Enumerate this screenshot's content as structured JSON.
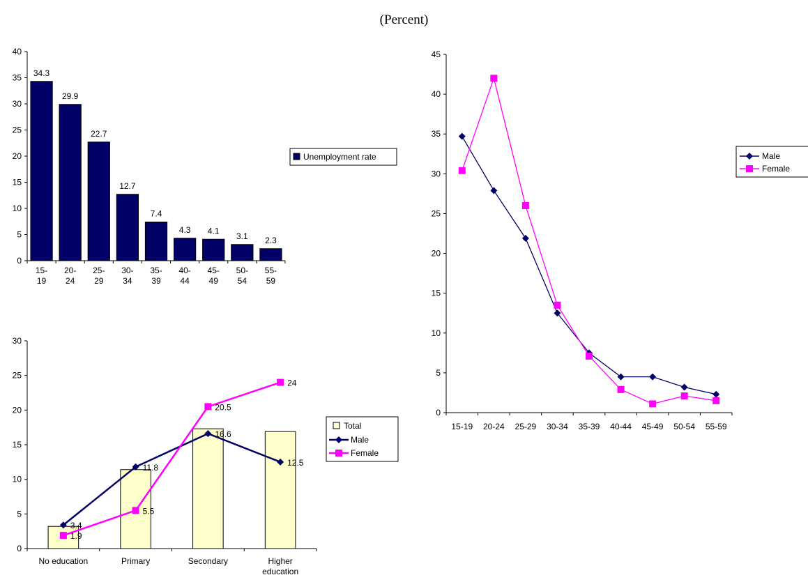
{
  "page": {
    "title": "(Percent)"
  },
  "colors": {
    "navy": "#000066",
    "magenta": "#ff00ff",
    "cream": "#ffffcc"
  },
  "chart_data": [
    {
      "type": "bar",
      "categories": [
        "15-19",
        "20-24",
        "25-29",
        "30-34",
        "35-39",
        "40-44",
        "45-49",
        "50-54",
        "55-59"
      ],
      "series": [
        {
          "name": "Unemployment rate",
          "values": [
            34.3,
            29.9,
            22.7,
            12.7,
            7.4,
            4.3,
            4.1,
            3.1,
            2.3
          ]
        }
      ],
      "yticks": [
        0,
        5,
        10,
        15,
        20,
        25,
        30,
        35,
        40
      ],
      "ylim": [
        0,
        40
      ],
      "grid": false,
      "legend": "right",
      "data_labels": true
    },
    {
      "type": "line",
      "categories": [
        "15-19",
        "20-24",
        "25-29",
        "30-34",
        "35-39",
        "40-44",
        "45-49",
        "50-54",
        "55-59"
      ],
      "series": [
        {
          "name": "Male",
          "values": [
            34.7,
            27.9,
            21.9,
            12.5,
            7.5,
            4.5,
            4.5,
            3.2,
            2.3
          ]
        },
        {
          "name": "Female",
          "values": [
            30.4,
            42.0,
            26.0,
            13.5,
            7.1,
            2.9,
            1.1,
            2.1,
            1.5
          ]
        }
      ],
      "yticks": [
        0,
        5,
        10,
        15,
        20,
        25,
        30,
        35,
        40,
        45
      ],
      "ylim": [
        0,
        45
      ],
      "grid": false,
      "legend": "right"
    },
    {
      "type": "bar",
      "categories": [
        "No education",
        "Primary",
        "Secondary",
        "Higher education"
      ],
      "series": [
        {
          "name": "Total",
          "values": [
            3.2,
            11.4,
            17.3,
            16.9
          ]
        },
        {
          "name": "Male",
          "values": [
            3.4,
            11.8,
            16.6,
            12.5
          ]
        },
        {
          "name": "Female",
          "values": [
            1.9,
            5.5,
            20.5,
            24
          ]
        }
      ],
      "yticks": [
        0,
        5,
        10,
        15,
        20,
        25,
        30
      ],
      "ylim": [
        0,
        30
      ],
      "grid": false,
      "legend": "right",
      "data_labels": true
    }
  ]
}
